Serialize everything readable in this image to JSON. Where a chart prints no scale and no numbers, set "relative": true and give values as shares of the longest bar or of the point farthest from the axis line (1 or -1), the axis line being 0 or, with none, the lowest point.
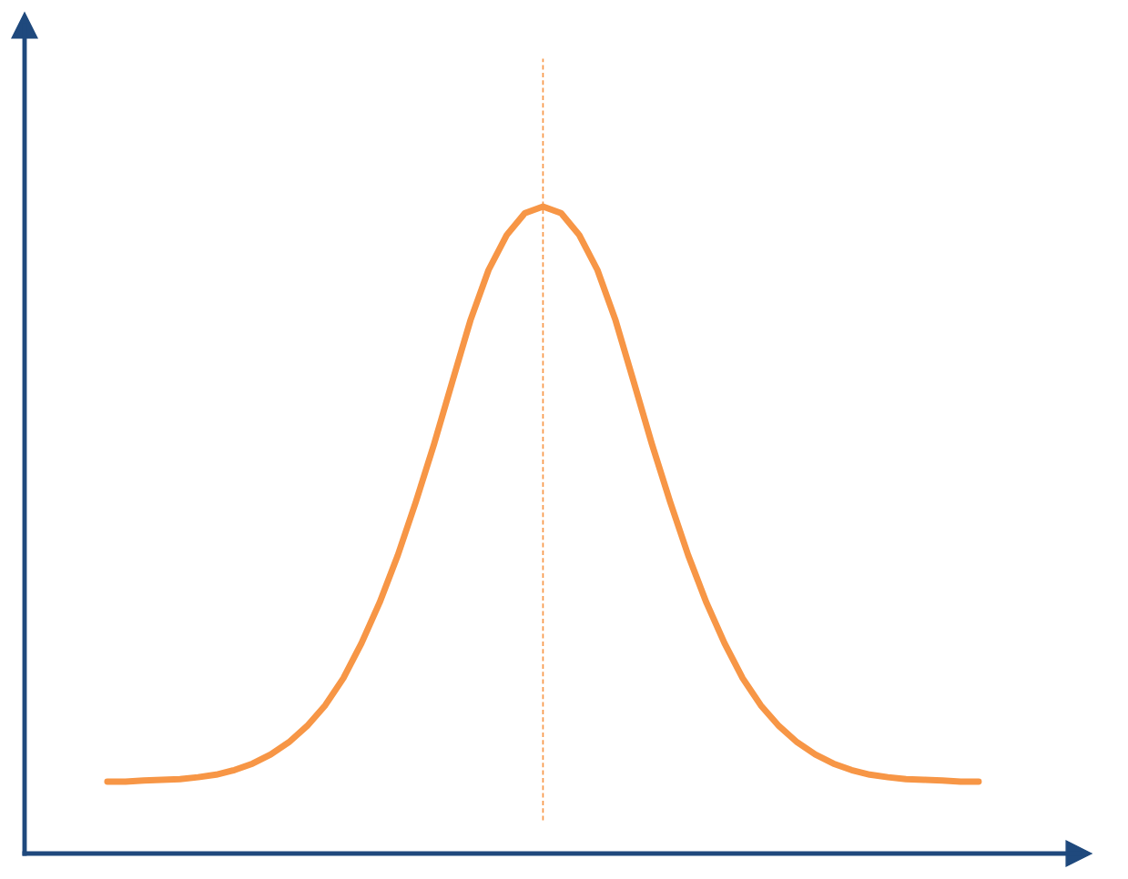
{
  "chart_data": {
    "type": "line",
    "relative": true,
    "categories": [
      null,
      null,
      null,
      null,
      null,
      null,
      null,
      null,
      null,
      null,
      null,
      null,
      null,
      null,
      null,
      null,
      null,
      null,
      null,
      null,
      null,
      null,
      null,
      null,
      null,
      null,
      null,
      null,
      null,
      null,
      null,
      null,
      null,
      null,
      null,
      null,
      null,
      null,
      null,
      null,
      null,
      null,
      null,
      null,
      null,
      null,
      null,
      null,
      null
    ],
    "series": [
      {
        "color": "#f79646",
        "values": [
          0.111,
          0.111,
          0.113,
          0.114,
          0.115,
          0.118,
          0.122,
          0.129,
          0.139,
          0.153,
          0.172,
          0.197,
          0.229,
          0.271,
          0.325,
          0.388,
          0.461,
          0.544,
          0.633,
          0.729,
          0.824,
          0.902,
          0.956,
          0.99,
          1.0,
          0.99,
          0.956,
          0.902,
          0.824,
          0.729,
          0.633,
          0.544,
          0.461,
          0.388,
          0.325,
          0.271,
          0.229,
          0.197,
          0.172,
          0.153,
          0.139,
          0.129,
          0.122,
          0.118,
          0.115,
          0.114,
          0.113,
          0.111,
          0.111
        ]
      }
    ],
    "legend": false,
    "marker": "none",
    "line_style": "solid"
  }
}
